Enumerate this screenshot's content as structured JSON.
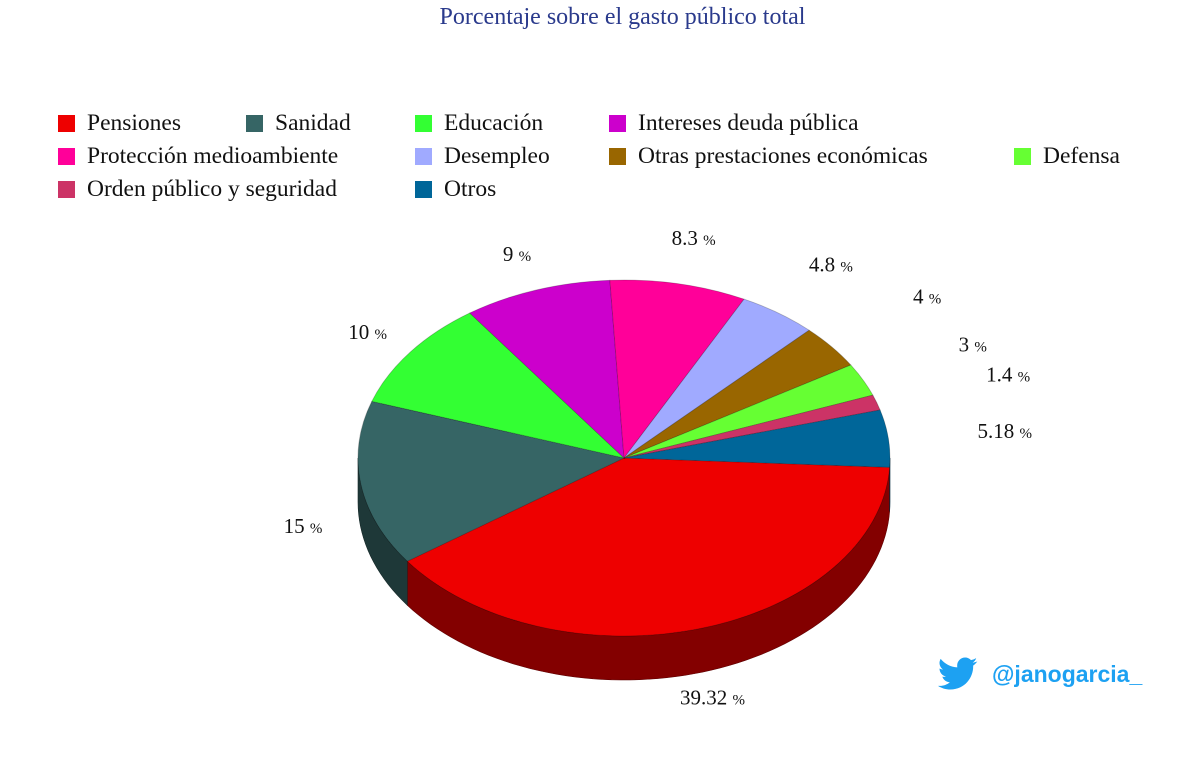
{
  "chart_data": {
    "type": "pie",
    "title": "Porcentaje sobre el gasto público total",
    "unit_label": "%",
    "legend_position": "top",
    "slices": [
      {
        "name": "Pensiones",
        "value": 39.32,
        "label": "39.32",
        "color": "#ee0000"
      },
      {
        "name": "Sanidad",
        "value": 15,
        "label": "15",
        "color": "#366565"
      },
      {
        "name": "Educación",
        "value": 10,
        "label": "10",
        "color": "#33ff33"
      },
      {
        "name": "Intereses deuda pública",
        "value": 9,
        "label": "9",
        "color": "#cc00cc"
      },
      {
        "name": "Protección medioambiente",
        "value": 8.3,
        "label": "8.3",
        "color": "#ff0099"
      },
      {
        "name": "Desempleo",
        "value": 4.8,
        "label": "4.8",
        "color": "#a0aaff"
      },
      {
        "name": "Otras prestaciones económicas",
        "value": 4,
        "label": "4",
        "color": "#996600"
      },
      {
        "name": "Defensa",
        "value": 3,
        "label": "3",
        "color": "#66ff33"
      },
      {
        "name": "Orden público y seguridad",
        "value": 1.4,
        "label": "1.4",
        "color": "#cc3366"
      },
      {
        "name": "Otros",
        "value": 5.18,
        "label": "5.18",
        "color": "#006699"
      }
    ]
  },
  "credit": {
    "handle": "@janogarcia_",
    "icon": "twitter-bird-icon",
    "color": "#1da1f2"
  }
}
